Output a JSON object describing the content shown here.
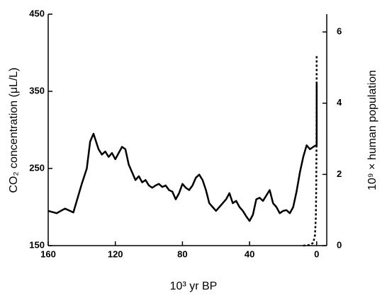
{
  "chart_data": {
    "type": "line",
    "xlabel": "10³ yr BP",
    "ylabel": "CO₂ concentration (μL/L)",
    "y2label": "10⁹ × human population",
    "xlim": [
      160,
      -6
    ],
    "xticks": [
      160,
      120,
      80,
      40,
      0
    ],
    "ylim": [
      150,
      450
    ],
    "yticks": [
      150,
      250,
      350,
      450
    ],
    "y2lim": [
      0,
      6.5
    ],
    "y2ticks": [
      0,
      2,
      4,
      6
    ],
    "series": [
      {
        "name": "CO₂",
        "color": "#000000",
        "style": "solid",
        "x": [
          160,
          155,
          150,
          145,
          140,
          137,
          135,
          133,
          130,
          128,
          126,
          124,
          122,
          120,
          118,
          116,
          114,
          112,
          110,
          108,
          106,
          104,
          102,
          100,
          98,
          96,
          94,
          92,
          90,
          88,
          86,
          84,
          82,
          80,
          78,
          76,
          74,
          72,
          70,
          68,
          66,
          64,
          62,
          60,
          58,
          56,
          54,
          52,
          50,
          48,
          46,
          44,
          42,
          40,
          38,
          36,
          34,
          32,
          30,
          28,
          26,
          24,
          22,
          20,
          18,
          16,
          14,
          12,
          10,
          8,
          6,
          4,
          2,
          0.5,
          0,
          0
        ],
        "values": [
          195,
          192,
          198,
          193,
          230,
          250,
          285,
          295,
          275,
          268,
          272,
          265,
          270,
          262,
          270,
          278,
          275,
          255,
          245,
          235,
          240,
          232,
          235,
          228,
          225,
          228,
          230,
          226,
          228,
          222,
          220,
          210,
          218,
          230,
          225,
          222,
          228,
          238,
          242,
          235,
          222,
          205,
          200,
          195,
          200,
          205,
          210,
          218,
          205,
          208,
          200,
          195,
          188,
          182,
          190,
          210,
          212,
          208,
          215,
          222,
          205,
          200,
          192,
          195,
          196,
          192,
          200,
          220,
          245,
          265,
          280,
          275,
          278,
          280,
          280,
          360
        ]
      },
      {
        "name": "human population",
        "color": "#000000",
        "style": "dotted",
        "axis": "y2",
        "x": [
          8,
          4,
          2,
          1,
          0.5,
          0.3,
          0.1,
          0
        ],
        "values": [
          0,
          0.02,
          0.08,
          0.3,
          0.8,
          1.5,
          2.8,
          5.35
        ]
      }
    ]
  }
}
